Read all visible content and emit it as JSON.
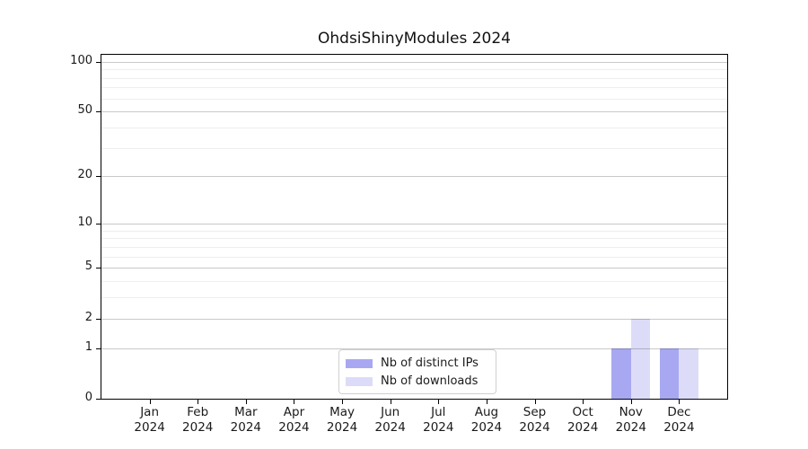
{
  "chart_data": {
    "type": "bar",
    "title": "OhdsiShinyModules 2024",
    "categories": [
      "Jan 2024",
      "Feb 2024",
      "Mar 2024",
      "Apr 2024",
      "May 2024",
      "Jun 2024",
      "Jul 2024",
      "Aug 2024",
      "Sep 2024",
      "Oct 2024",
      "Nov 2024",
      "Dec 2024"
    ],
    "series": [
      {
        "name": "Nb of distinct IPs",
        "color": "#a8a8f2",
        "values": [
          0,
          0,
          0,
          0,
          0,
          0,
          0,
          0,
          0,
          0,
          1,
          1
        ]
      },
      {
        "name": "Nb of downloads",
        "color": "#dcdcf9",
        "values": [
          0,
          0,
          0,
          0,
          0,
          0,
          0,
          0,
          0,
          0,
          2,
          1
        ]
      }
    ],
    "xlabel": "",
    "ylabel": "",
    "yscale": "log1p",
    "ylim": [
      0,
      110
    ],
    "yticks": [
      0,
      1,
      2,
      5,
      10,
      20,
      50,
      100
    ],
    "minor_gridlines": [
      3,
      4,
      6,
      7,
      8,
      9,
      30,
      40,
      60,
      70,
      80,
      90
    ],
    "grid": "horizontal",
    "legend_position": "lower center"
  },
  "colors": {
    "grid_major": "rgba(0,0,0,0.21)",
    "grid_minor": "rgba(0,0,0,0.065)",
    "frame": "#000000",
    "text": "#1a1a1a",
    "background": "#ffffff"
  }
}
